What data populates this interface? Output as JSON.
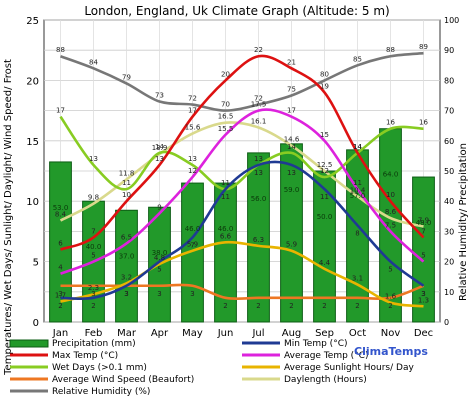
{
  "chart_data": {
    "type": "bar+line",
    "title": "London, England, Uk Climate Graph (Altitude: 5 m)",
    "ylabel_left": "Temperatures/ Wet Days/ Sunlight/ Daylight/ Wind Speed/ Frost",
    "ylabel_right": "Relative Humidity/ Precipitation",
    "ylim_left": [
      0,
      25
    ],
    "ylim_right": [
      0,
      100
    ],
    "yticks_left": [
      "0",
      "5",
      "10",
      "15",
      "20",
      "25"
    ],
    "yticks_right": [
      "0",
      "10",
      "20",
      "30",
      "40",
      "50",
      "60",
      "70",
      "80",
      "90",
      "100"
    ],
    "categories": [
      "Jan",
      "Feb",
      "Mar",
      "Apr",
      "May",
      "Jun",
      "Jul",
      "Aug",
      "Sep",
      "Oct",
      "Nov",
      "Dec"
    ],
    "grid": true,
    "credit": "ClimaTemps",
    "series": [
      {
        "name": "Precipitation (mm)",
        "type": "bar",
        "axis": "right",
        "color": "#22992a",
        "values": [
          53.0,
          40.0,
          37.0,
          38.0,
          46.0,
          46.0,
          56.0,
          59.0,
          50.0,
          57.0,
          64.0,
          48.0
        ],
        "labels": [
          "53.0",
          "40.0",
          "37.0",
          "38.0",
          "46.0",
          "46.0",
          "56.0",
          "59.0",
          "50.0",
          "57.0",
          "64.0",
          "48.0"
        ]
      },
      {
        "name": "Min Temp (°C)",
        "type": "line",
        "axis": "left",
        "color": "#1f3a93",
        "values": [
          2,
          2,
          3,
          5,
          7,
          11,
          13,
          13,
          11,
          8,
          5,
          3
        ],
        "labels": [
          "2",
          "2",
          "3",
          "5",
          "7",
          "11",
          "13",
          "13",
          "11",
          "8",
          "5",
          "3"
        ]
      },
      {
        "name": "Max Temp (°C)",
        "type": "line",
        "axis": "left",
        "color": "#dd1111",
        "values": [
          6,
          7,
          10,
          13,
          17,
          20,
          22,
          21,
          19,
          14,
          10,
          7
        ],
        "labels": [
          "6",
          "7",
          "10",
          "13",
          "17",
          "20",
          "22",
          "21",
          "19",
          "14",
          "10",
          "7"
        ]
      },
      {
        "name": "Average Temp (°C)",
        "type": "line",
        "axis": "left",
        "color": "#dd22dd",
        "values": [
          4,
          5,
          6.5,
          9,
          12,
          15.5,
          17.5,
          17,
          15,
          11,
          7.5,
          5
        ],
        "labels": [
          "4",
          "5",
          "6.5",
          "9",
          "12",
          "15.5",
          "17.5",
          "17",
          "15",
          "11",
          "7.5",
          "5"
        ]
      },
      {
        "name": "Wet Days (>0.1 mm)",
        "type": "line",
        "axis": "left",
        "color": "#88cc22",
        "values": [
          17,
          13,
          11,
          14,
          13,
          11,
          13,
          14,
          12,
          14,
          16,
          16
        ],
        "labels": [
          "17",
          "13",
          "11",
          "14",
          "13",
          "11",
          "13",
          "14",
          "12",
          "14",
          "16",
          "16"
        ]
      },
      {
        "name": "Average Sunlight Hours/ Day",
        "type": "line",
        "axis": "left",
        "color": "#e8b400",
        "values": [
          1.7,
          2.3,
          3.2,
          4.8,
          5.9,
          6.6,
          6.3,
          5.9,
          4.4,
          3.1,
          1.6,
          1.3
        ],
        "labels": [
          "1.7",
          "2.3",
          "3.2",
          "4.8",
          "5.9",
          "6.6",
          "6.3",
          "5.9",
          "4.4",
          "3.1",
          "1.6",
          "1.3"
        ]
      },
      {
        "name": "Average Wind Speed (Beaufort)",
        "type": "line",
        "axis": "left",
        "color": "#ee7722",
        "values": [
          3,
          3,
          3,
          3,
          3,
          2,
          2,
          2,
          2,
          2,
          2,
          3
        ],
        "labels": [
          "3",
          "3",
          "3",
          "3",
          "3",
          "2",
          "2",
          "2",
          "2",
          "2",
          "2",
          "3"
        ]
      },
      {
        "name": "Daylength (Hours)",
        "type": "line",
        "axis": "left",
        "color": "#d9d98c",
        "values": [
          8.4,
          9.8,
          11.8,
          13.9,
          15.6,
          16.5,
          16.1,
          14.6,
          12.5,
          10.4,
          8.6,
          7.9
        ],
        "labels": [
          "8.4",
          "9.8",
          "11.8",
          "13.9",
          "15.6",
          "16.5",
          "16.1",
          "14.6",
          "12.5",
          "10.4",
          "8.6",
          "7.9"
        ]
      },
      {
        "name": "Relative Humidity (%)",
        "type": "line",
        "axis": "right",
        "color": "#777777",
        "values": [
          88,
          84,
          79,
          73,
          72,
          70,
          72,
          75,
          80,
          85,
          88,
          89
        ],
        "labels": [
          "88",
          "84",
          "79",
          "73",
          "72",
          "70",
          "72",
          "75",
          "80",
          "85",
          "88",
          "89"
        ]
      }
    ],
    "legend": [
      {
        "label": "Precipitation (mm)",
        "color": "#22992a",
        "kind": "bar"
      },
      {
        "label": "Min Temp (°C)",
        "color": "#1f3a93",
        "kind": "line"
      },
      {
        "label": "Max Temp (°C)",
        "color": "#dd1111",
        "kind": "line"
      },
      {
        "label": "Average Temp (°C)",
        "color": "#dd22dd",
        "kind": "line"
      },
      {
        "label": "Wet Days (>0.1 mm)",
        "color": "#88cc22",
        "kind": "line"
      },
      {
        "label": "Average Sunlight Hours/ Day",
        "color": "#e8b400",
        "kind": "line"
      },
      {
        "label": "Average Wind Speed (Beaufort)",
        "color": "#ee7722",
        "kind": "line"
      },
      {
        "label": "Daylength (Hours)",
        "color": "#d9d98c",
        "kind": "line"
      },
      {
        "label": "Relative Humidity (%)",
        "color": "#777777",
        "kind": "line"
      }
    ]
  }
}
